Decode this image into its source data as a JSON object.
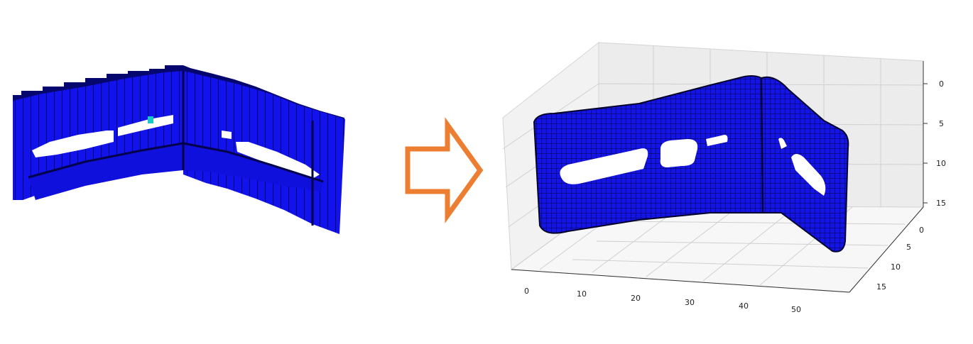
{
  "left_figure": {
    "kind": "voxel-model",
    "color": "#1010e8",
    "dark": "#050566",
    "highlight": "#19c8c8"
  },
  "arrow": {
    "color": "#ed7d31",
    "direction": "right"
  },
  "right_figure": {
    "kind": "smoothed-mesh-3d-plot",
    "mesh_color": "#1414e6",
    "axes": {
      "x_ticks": [
        "0",
        "10",
        "20",
        "30",
        "40",
        "50"
      ],
      "y_ticks": [
        "0",
        "5",
        "10",
        "15"
      ],
      "z_ticks": [
        "0",
        "5",
        "10",
        "15"
      ]
    }
  }
}
